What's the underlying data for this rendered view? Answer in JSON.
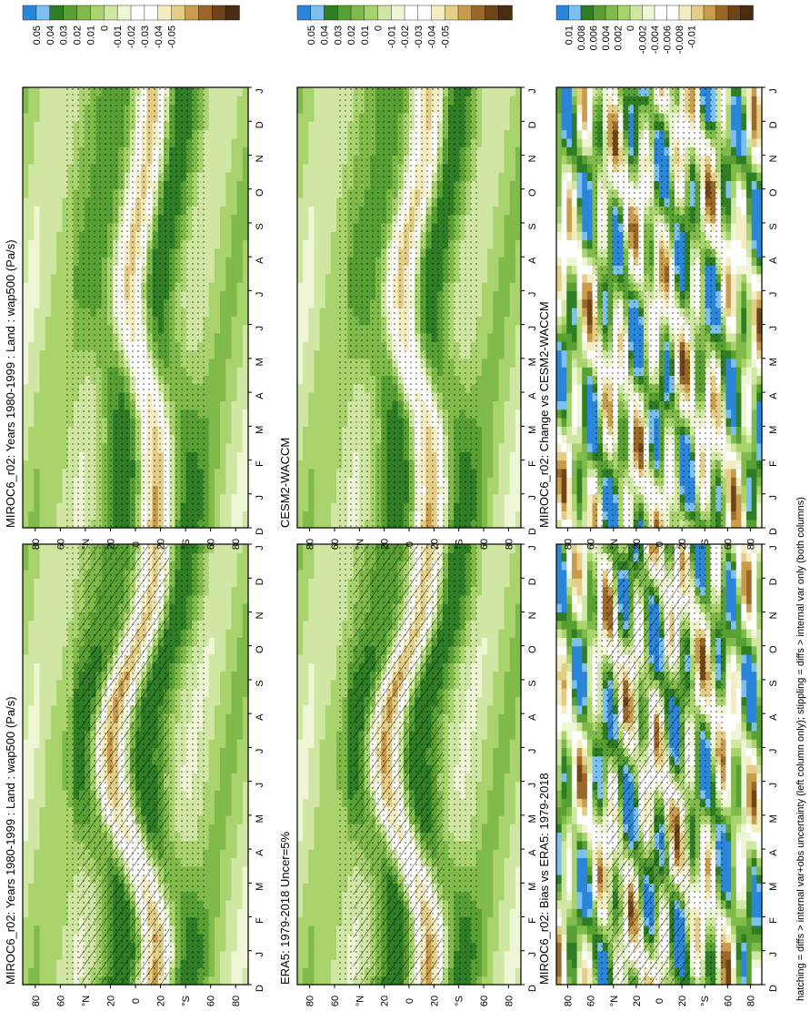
{
  "footnote": "hatching = diffs > internal var+obs uncertainty (left column only); stippling = diffs > internal var only (both columns)",
  "colors": {
    "dry": [
      "#f5edc2",
      "#e3cd87",
      "#c99c4c",
      "#9c6828",
      "#6e4418",
      "#4a2c0e"
    ],
    "wet": [
      "#eef6d6",
      "#cfe7a2",
      "#a9d36c",
      "#80ba4a",
      "#58a033",
      "#2f7d25"
    ],
    "strong_wet": [
      "#2b86d9",
      "#7cc0f0"
    ],
    "white": "#ffffff"
  },
  "axes": {
    "months": [
      "D",
      "J",
      "F",
      "M",
      "A",
      "M",
      "J",
      "J",
      "A",
      "S",
      "O",
      "N",
      "D",
      "J"
    ],
    "lat_ticks": [
      "80",
      "60",
      "°N",
      "20",
      "0",
      "20",
      "°S",
      "60",
      "80"
    ]
  },
  "colorbars": {
    "mean": [
      "0.05",
      "0.04",
      "0.03",
      "0.02",
      "0.01",
      "0",
      "-0.01",
      "-0.02",
      "-0.03",
      "-0.04",
      "-0.05"
    ],
    "diff": [
      "0.01",
      "0.008",
      "0.006",
      "0.004",
      "0.002",
      "0",
      "-0.002",
      "-0.004",
      "-0.006",
      "-0.008",
      "-0.01"
    ]
  },
  "chart_data": [
    {
      "type": "heatmap",
      "title": "MIROC6_r02: Years 1980-1999 : Land : wap500 (Pa/s)",
      "x": "month (Dec–Jan)",
      "y": "latitude (80°N – 80°S)",
      "itcz_lat_by_month": [
        -12,
        -16,
        -12,
        -6,
        2,
        10,
        16,
        18,
        15,
        8,
        -2,
        -10,
        -14,
        -16
      ],
      "colorbar": "mean",
      "hatching": true,
      "stippling": true
    },
    {
      "type": "heatmap",
      "title": "MIROC6_r02: Years 1980-1999 : Land : wap500 (Pa/s)",
      "x": "month (Dec–Jan)",
      "y": "latitude (80°N – 80°S)",
      "itcz_lat_by_month": [
        -14,
        -15,
        -14,
        -12,
        -8,
        -2,
        2,
        4,
        2,
        -2,
        -6,
        -10,
        -12,
        -14
      ],
      "colorbar": "mean",
      "hatching": false,
      "stippling": true
    },
    {
      "type": "heatmap",
      "title": "ERA5: 1979-2018 Uncer=5%",
      "x": "month (Dec–Jan)",
      "y": "latitude (80°N – 80°S)",
      "itcz_lat_by_month": [
        -12,
        -15,
        -12,
        -6,
        2,
        10,
        16,
        18,
        15,
        8,
        -2,
        -10,
        -13,
        -15
      ],
      "colorbar": "mean",
      "hatching": true,
      "stippling": true
    },
    {
      "type": "heatmap",
      "title": "CESM2-WACCM",
      "x": "month (Dec–Jan)",
      "y": "latitude (80°N – 80°S)",
      "itcz_lat_by_month": [
        -14,
        -16,
        -14,
        -12,
        -6,
        0,
        4,
        5,
        3,
        -2,
        -8,
        -12,
        -14,
        -15
      ],
      "colorbar": "mean",
      "hatching": false,
      "stippling": true
    },
    {
      "type": "heatmap",
      "title": "MIROC6_r02: Bias vs ERA5: 1979-2018",
      "x": "month (Dec–Jan)",
      "y": "latitude (80°N – 80°S)",
      "colorbar": "diff",
      "hatching": true,
      "stippling": true
    },
    {
      "type": "heatmap",
      "title": "MIROC6_r02: Change vs CESM2-WACCM",
      "x": "month (Dec–Jan)",
      "y": "latitude (80°N – 80°S)",
      "colorbar": "diff",
      "hatching": false,
      "stippling": true
    }
  ]
}
